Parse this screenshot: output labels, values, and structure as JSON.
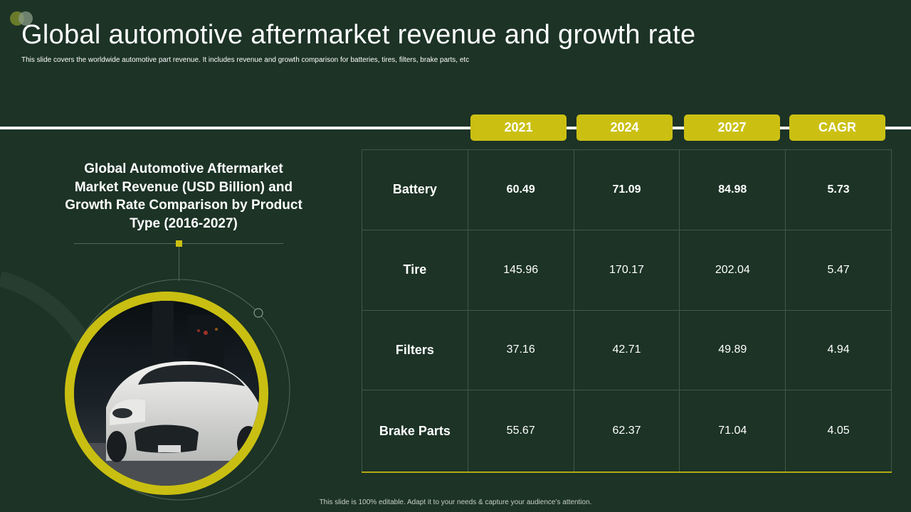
{
  "slide": {
    "title": "Global automotive aftermarket revenue and growth rate",
    "subtitle": "This slide covers the worldwide automotive part revenue. It includes revenue and growth comparison for batteries, tires, filters, brake parts, etc",
    "footer": "This slide is 100% editable.  Adapt it to your needs & capture your audience’s attention."
  },
  "side_panel": {
    "title": "Global Automotive Aftermarket Market Revenue (USD Billion) and Growth Rate Comparison by Product Type (2016-2027)"
  },
  "table": {
    "headers": [
      "2021",
      "2024",
      "2027",
      "CAGR"
    ],
    "rows": [
      {
        "label": "Battery",
        "values": [
          "60.49",
          "71.09",
          "84.98",
          "5.73"
        ]
      },
      {
        "label": "Tire",
        "values": [
          "145.96",
          "170.17",
          "202.04",
          "5.47"
        ]
      },
      {
        "label": "Filters",
        "values": [
          "37.16",
          "42.71",
          "49.89",
          "4.94"
        ]
      },
      {
        "label": "Brake Parts",
        "values": [
          "55.67",
          "62.37",
          "71.04",
          "4.05"
        ]
      }
    ]
  },
  "colors": {
    "background": "#1c3326",
    "accent": "#cbc012",
    "grid": "#3f5a48"
  },
  "icons": {
    "logo": "two-circles-logo-icon",
    "car": "sports-car-photo"
  }
}
